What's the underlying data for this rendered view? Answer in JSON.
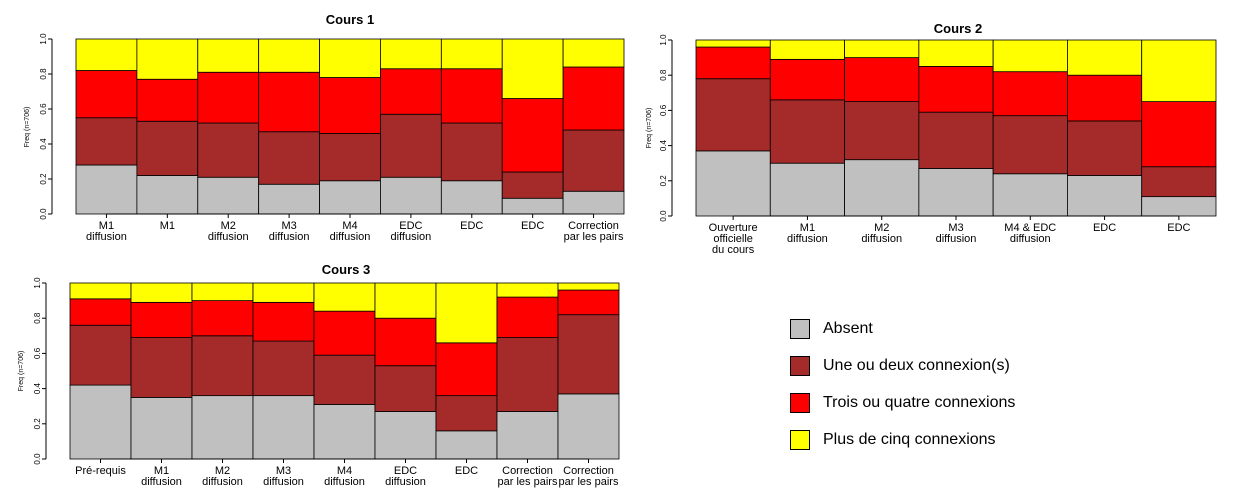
{
  "colors": {
    "absent": "#c0c0c0",
    "une_deux": "#a52a2a",
    "trois_quatre": "#ff0000",
    "plus_cinq": "#ffff00"
  },
  "legend": [
    {
      "label": "Absent",
      "color": "#c0c0c0"
    },
    {
      "label": "Une ou deux connexion(s)",
      "color": "#a52a2a"
    },
    {
      "label": "Trois ou quatre connexions",
      "color": "#ff0000"
    },
    {
      "label": "Plus de cinq connexions",
      "color": "#ffff00"
    }
  ],
  "chart_data": [
    {
      "type": "bar",
      "stacked": true,
      "title": "Cours 1",
      "ylabel": "Freq (n=706)",
      "ylim": [
        0,
        1
      ],
      "yticks": [
        "0.0",
        "0.2",
        "0.4",
        "0.6",
        "0.8",
        "1.0"
      ],
      "categories": [
        [
          "M1",
          "diffusion"
        ],
        [
          "M1"
        ],
        [
          "M2",
          "diffusion"
        ],
        [
          "M3",
          "diffusion"
        ],
        [
          "M4",
          "diffusion"
        ],
        [
          "EDC",
          "diffusion"
        ],
        [
          "EDC"
        ],
        [
          "EDC"
        ],
        [
          "Correction",
          "par les pairs"
        ]
      ],
      "series": [
        {
          "name": "Absent",
          "values": [
            0.28,
            0.22,
            0.21,
            0.17,
            0.19,
            0.21,
            0.19,
            0.09,
            0.13
          ]
        },
        {
          "name": "Une ou deux connexion(s)",
          "values": [
            0.27,
            0.31,
            0.31,
            0.3,
            0.27,
            0.36,
            0.33,
            0.15,
            0.35
          ]
        },
        {
          "name": "Trois ou quatre connexions",
          "values": [
            0.27,
            0.24,
            0.29,
            0.34,
            0.32,
            0.26,
            0.31,
            0.42,
            0.36
          ]
        },
        {
          "name": "Plus de cinq connexions",
          "values": [
            0.18,
            0.23,
            0.19,
            0.19,
            0.22,
            0.17,
            0.17,
            0.34,
            0.16
          ]
        }
      ]
    },
    {
      "type": "bar",
      "stacked": true,
      "title": "Cours 2",
      "ylabel": "Freq (n=706)",
      "ylim": [
        0,
        1
      ],
      "yticks": [
        "0.0",
        "0.2",
        "0.4",
        "0.6",
        "0.8",
        "1.0"
      ],
      "categories": [
        [
          "Ouverture",
          "officielle",
          "du cours"
        ],
        [
          "M1",
          "diffusion"
        ],
        [
          "M2",
          "diffusion"
        ],
        [
          "M3",
          "diffusion"
        ],
        [
          "M4 & EDC",
          "diffusion"
        ],
        [
          "EDC"
        ],
        [
          "EDC"
        ]
      ],
      "series": [
        {
          "name": "Absent",
          "values": [
            0.37,
            0.3,
            0.32,
            0.27,
            0.24,
            0.23,
            0.11
          ]
        },
        {
          "name": "Une ou deux connexion(s)",
          "values": [
            0.41,
            0.36,
            0.33,
            0.32,
            0.33,
            0.31,
            0.17
          ]
        },
        {
          "name": "Trois ou quatre connexions",
          "values": [
            0.18,
            0.23,
            0.25,
            0.26,
            0.25,
            0.26,
            0.37
          ]
        },
        {
          "name": "Plus de cinq connexions",
          "values": [
            0.04,
            0.11,
            0.1,
            0.15,
            0.18,
            0.2,
            0.35
          ]
        }
      ]
    },
    {
      "type": "bar",
      "stacked": true,
      "title": "Cours 3",
      "ylabel": "Freq (n=706)",
      "ylim": [
        0,
        1
      ],
      "yticks": [
        "0.0",
        "0.2",
        "0.4",
        "0.6",
        "0.8",
        "1.0"
      ],
      "categories": [
        [
          "Pré-requis"
        ],
        [
          "M1",
          "diffusion"
        ],
        [
          "M2",
          "diffusion"
        ],
        [
          "M3",
          "diffusion"
        ],
        [
          "M4",
          "diffusion"
        ],
        [
          "EDC",
          "diffusion"
        ],
        [
          "EDC"
        ],
        [
          "Correction",
          "par les pairs"
        ],
        [
          "Correction",
          "par les pairs"
        ]
      ],
      "series": [
        {
          "name": "Absent",
          "values": [
            0.42,
            0.35,
            0.36,
            0.36,
            0.31,
            0.27,
            0.16,
            0.27,
            0.37
          ]
        },
        {
          "name": "Une ou deux connexion(s)",
          "values": [
            0.34,
            0.34,
            0.34,
            0.31,
            0.28,
            0.26,
            0.2,
            0.42,
            0.45
          ]
        },
        {
          "name": "Trois ou quatre connexions",
          "values": [
            0.15,
            0.2,
            0.2,
            0.22,
            0.25,
            0.27,
            0.3,
            0.23,
            0.14
          ]
        },
        {
          "name": "Plus de cinq connexions",
          "values": [
            0.09,
            0.11,
            0.1,
            0.11,
            0.16,
            0.2,
            0.34,
            0.08,
            0.04
          ]
        }
      ]
    }
  ]
}
